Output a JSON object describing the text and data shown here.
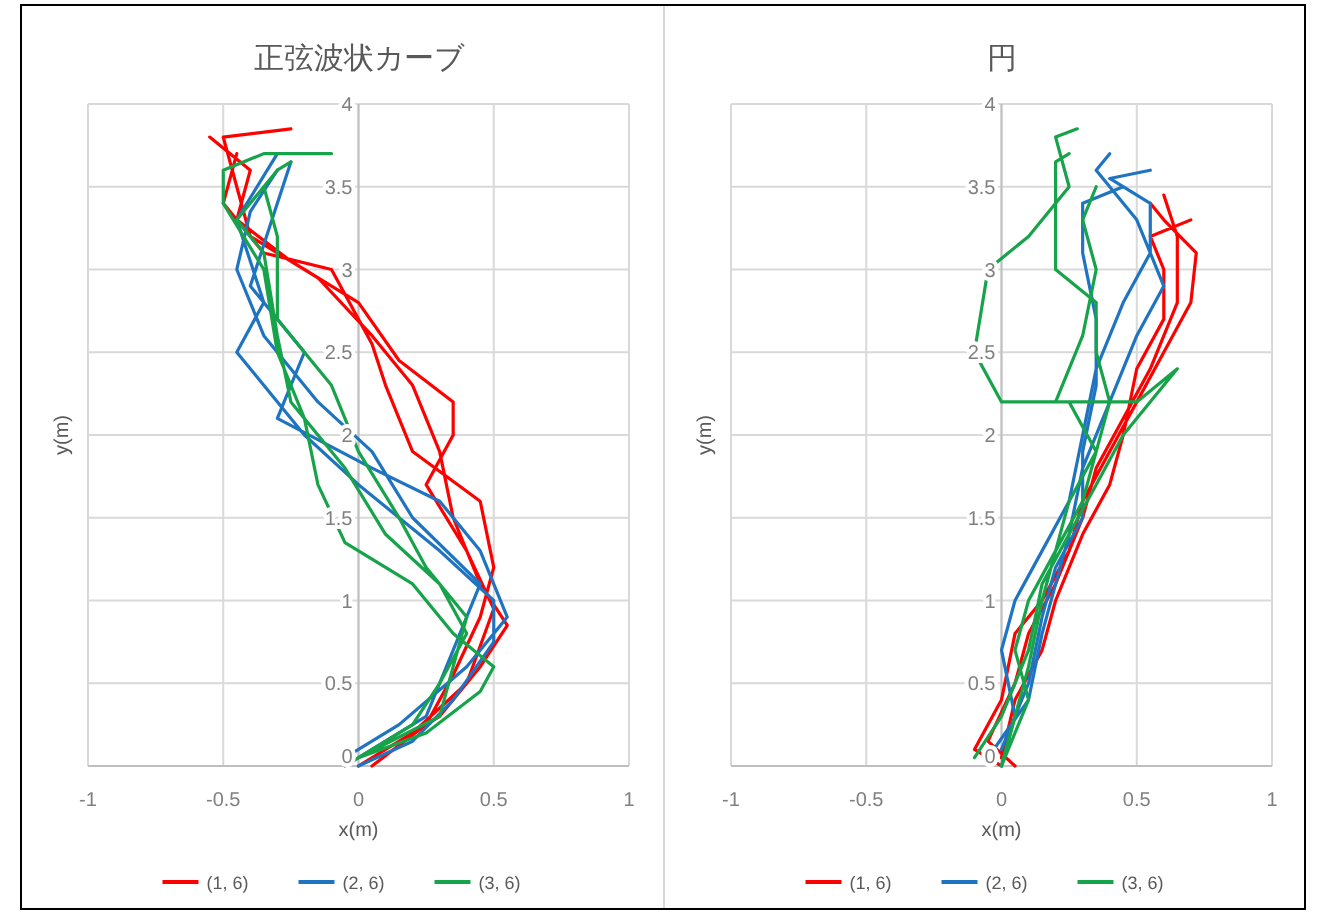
{
  "chart_data": [
    {
      "type": "line",
      "title": "正弦波状カーブ",
      "xlabel": "x(m)",
      "ylabel": "y(m)",
      "xlim": [
        -1,
        1
      ],
      "xticks": [
        -1,
        -0.5,
        0,
        0.5,
        1
      ],
      "ylim": [
        0,
        4
      ],
      "yticks": [
        0,
        0.5,
        1,
        1.5,
        2,
        2.5,
        3,
        3.5,
        4
      ],
      "grid": true,
      "legend": "bottom",
      "marker": "none",
      "line_style": "solid",
      "series": [
        {
          "name": "(1, 6)",
          "color": "#ff0000",
          "x": [
            0,
            0.3,
            0.45,
            0.55,
            0.45,
            0.35,
            0.3,
            0.2,
            0.05,
            -0.15,
            -0.4,
            -0.45,
            -0.5,
            -0.25,
            null,
            0,
            0.2,
            0.4,
            0.5,
            0.4,
            0.25,
            0.35,
            0.35,
            0.15,
            0,
            -0.25,
            -0.45,
            -0.4,
            -0.55,
            null,
            0.05,
            0.25,
            0.35,
            0.45,
            0.5,
            0.45,
            0.2,
            0.1,
            0.05,
            -0.1,
            -0.35,
            -0.5,
            -0.45
          ],
          "values": [
            0,
            0.3,
            0.6,
            0.85,
            1.1,
            1.5,
            1.9,
            2.3,
            2.6,
            2.95,
            3.2,
            3.5,
            3.8,
            3.85,
            null,
            0,
            0.2,
            0.5,
            0.95,
            1.3,
            1.7,
            2,
            2.2,
            2.45,
            2.8,
            3.05,
            3.3,
            3.6,
            3.8,
            null,
            0,
            0.25,
            0.55,
            0.9,
            1.2,
            1.6,
            1.9,
            2.3,
            2.55,
            3,
            3.1,
            3.4,
            3.7
          ]
        },
        {
          "name": "(2, 6)",
          "color": "#1f74c2",
          "x": [
            0,
            0.2,
            0.35,
            0.5,
            0.5,
            0.3,
            0,
            -0.2,
            -0.45,
            -0.35,
            -0.45,
            -0.3,
            null,
            -0.05,
            0.15,
            0.4,
            0.55,
            0.45,
            0.3,
            0.05,
            -0.3,
            -0.2,
            -0.4,
            -0.3,
            -0.25,
            null,
            0,
            0.25,
            0.35,
            0.45,
            0.2,
            0.05,
            -0.15,
            -0.35,
            -0.45,
            -0.4,
            -0.3
          ],
          "values": [
            0,
            0.15,
            0.4,
            0.75,
            1,
            1.3,
            1.7,
            2,
            2.5,
            2.8,
            3.3,
            3.7,
            null,
            0.05,
            0.25,
            0.6,
            0.9,
            1.3,
            1.6,
            1.8,
            2.1,
            2.5,
            2.9,
            3.4,
            3.65,
            null,
            0.05,
            0.3,
            0.7,
            1.1,
            1.5,
            1.9,
            2.2,
            2.6,
            3,
            3.35,
            3.6
          ]
        },
        {
          "name": "(3, 6)",
          "color": "#16a34a",
          "x": [
            0,
            0.25,
            0.45,
            0.5,
            0.35,
            0.2,
            -0.05,
            -0.15,
            -0.2,
            -0.3,
            -0.35,
            -0.5,
            -0.5,
            -0.35,
            -0.1,
            null,
            -0.05,
            0.2,
            0.3,
            0.4,
            0.3,
            0.1,
            -0.05,
            -0.25,
            -0.3,
            -0.35,
            -0.45,
            -0.3,
            -0.25,
            null,
            0,
            0.3,
            0.35,
            0.4,
            0.25,
            0.15,
            0,
            -0.1,
            -0.3,
            -0.3,
            -0.35,
            -0.3
          ],
          "values": [
            0.05,
            0.2,
            0.45,
            0.6,
            0.8,
            1.1,
            1.35,
            1.7,
            2.1,
            2.5,
            3,
            3.4,
            3.6,
            3.7,
            3.7,
            null,
            0,
            0.25,
            0.5,
            0.8,
            1.1,
            1.4,
            1.8,
            2.2,
            2.6,
            3.1,
            3.3,
            3.6,
            3.65,
            null,
            0.05,
            0.3,
            0.6,
            0.9,
            1.2,
            1.5,
            1.9,
            2.3,
            2.7,
            3.2,
            3.5,
            3.6
          ]
        }
      ]
    },
    {
      "type": "line",
      "title": "円",
      "xlabel": "x(m)",
      "ylabel": "y(m)",
      "xlim": [
        -1,
        1
      ],
      "xticks": [
        -1,
        -0.5,
        0,
        0.5,
        1
      ],
      "ylim": [
        0,
        4
      ],
      "yticks": [
        0,
        0.5,
        1,
        1.5,
        2,
        2.5,
        3,
        3.5,
        4
      ],
      "grid": true,
      "legend": "bottom",
      "marker": "none",
      "line_style": "solid",
      "series": [
        {
          "name": "(1, 6)",
          "color": "#ff0000",
          "x": [
            0,
            -0.1,
            0,
            0.05,
            0.15,
            0.25,
            0.3,
            0.4,
            0.5,
            0.6,
            0.7,
            0.72,
            0.6,
            0.55,
            null,
            0.05,
            -0.05,
            0.05,
            0.1,
            0.2,
            0.3,
            0.35,
            0.45,
            0.55,
            0.65,
            0.65,
            0.6,
            null,
            0,
            0.05,
            0.15,
            0.2,
            0.3,
            0.4,
            0.45,
            0.5,
            0.6,
            0.6,
            0.55,
            0.7
          ],
          "values": [
            0,
            0.1,
            0.4,
            0.8,
            1,
            1.3,
            1.6,
            1.9,
            2.2,
            2.5,
            2.8,
            3.1,
            3.3,
            3.4,
            null,
            0,
            0.15,
            0.5,
            0.8,
            1.1,
            1.5,
            1.8,
            2.1,
            2.4,
            2.8,
            3.2,
            3.45,
            null,
            0.05,
            0.4,
            0.7,
            1,
            1.4,
            1.7,
            2,
            2.4,
            2.7,
            3,
            3.2,
            3.3
          ]
        },
        {
          "name": "(2, 6)",
          "color": "#1f74c2",
          "x": [
            0,
            0.05,
            0,
            0.05,
            0.15,
            0.25,
            0.3,
            0.35,
            0.45,
            0.55,
            0.55,
            0.4,
            0.55,
            null,
            -0.05,
            0.1,
            0.15,
            0.2,
            0.25,
            0.3,
            0.4,
            0.5,
            0.6,
            0.5,
            0.35,
            0.4,
            null,
            0,
            0.1,
            0.15,
            0.2,
            0.3,
            0.3,
            0.35,
            0.35,
            0.3,
            0.3,
            0.45
          ],
          "values": [
            0,
            0.3,
            0.7,
            1,
            1.3,
            1.6,
            2,
            2.4,
            2.8,
            3.1,
            3.4,
            3.55,
            3.6,
            null,
            0.05,
            0.4,
            0.8,
            1.1,
            1.4,
            1.8,
            2.2,
            2.6,
            2.9,
            3.3,
            3.6,
            3.7,
            null,
            0.1,
            0.5,
            0.9,
            1.2,
            1.5,
            1.9,
            2.3,
            2.7,
            3.1,
            3.4,
            3.5
          ]
        },
        {
          "name": "(3, 6)",
          "color": "#16a34a",
          "x": [
            0,
            0.05,
            0.1,
            0.15,
            0.2,
            0.3,
            0.35,
            0.25,
            0,
            -0.1,
            -0.05,
            0.1,
            0.25,
            0.2,
            0.28,
            null,
            -0.1,
            0,
            0.1,
            0.15,
            0.25,
            0.35,
            0.45,
            0.6,
            0.65,
            0.5,
            0.2,
            0.3,
            0.35,
            0.3,
            0.35,
            null,
            0,
            0.1,
            0.05,
            0.1,
            0.2,
            0.25,
            0.35,
            0.4,
            0.35,
            0.35,
            0.2,
            0.2,
            0.2,
            0.25
          ],
          "values": [
            0,
            0.3,
            0.6,
            1,
            1.3,
            1.6,
            1.9,
            2.2,
            2.2,
            2.5,
            3,
            3.2,
            3.5,
            3.8,
            3.85,
            null,
            0.05,
            0.3,
            0.7,
            1.1,
            1.4,
            1.7,
            2,
            2.3,
            2.4,
            2.2,
            2.2,
            2.6,
            3,
            3.3,
            3.5,
            null,
            0,
            0.4,
            0.7,
            1,
            1.3,
            1.6,
            1.9,
            2.2,
            2.5,
            2.8,
            3,
            3.4,
            3.65,
            3.7
          ]
        }
      ]
    }
  ]
}
